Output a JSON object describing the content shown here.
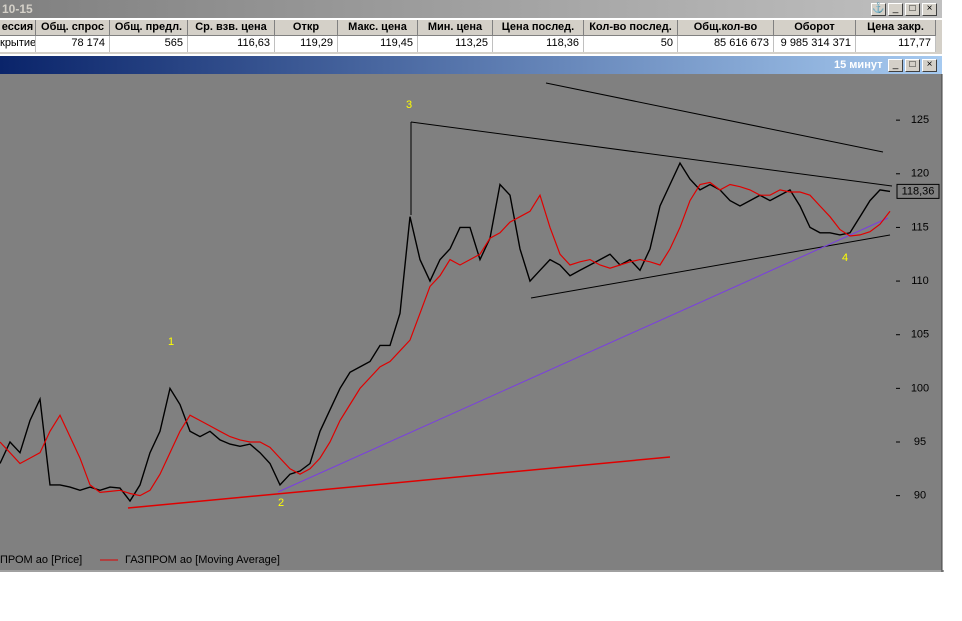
{
  "window": {
    "title": "10-15",
    "columns": [
      "ессия",
      "Общ. спрос",
      "Общ. предл.",
      "Ср. взв. цена",
      "Откр",
      "Макс. цена",
      "Мин. цена",
      "Цена послед.",
      "Кол-во послед.",
      "Общ.кол-во",
      "Оборот",
      "Цена закр."
    ],
    "row": [
      "крытие",
      "78 174",
      "565",
      "116,63",
      "119,29",
      "119,45",
      "113,25",
      "118,36",
      "50",
      "85 616 673",
      "9 985 314 371",
      "117,77"
    ]
  },
  "chart_window": {
    "title": "15 минут"
  },
  "chart_data": {
    "type": "line",
    "ylim": [
      85.4,
      129.3
    ],
    "yticks": [
      90,
      95,
      100,
      105,
      110,
      115,
      120,
      125
    ],
    "last_price": {
      "value": 118.36,
      "label": "118,36"
    },
    "annotations": [
      "1",
      "2",
      "3",
      "4"
    ],
    "series": [
      {
        "name": "ПРОМ ао [Price]",
        "color": "#000000",
        "values": [
          93,
          95,
          94,
          97,
          99,
          91,
          91,
          90.8,
          90.5,
          90.8,
          90.5,
          90.8,
          90.7,
          89.5,
          91,
          94,
          96,
          100,
          98.5,
          96,
          95.5,
          96,
          95.2,
          94.8,
          94.6,
          94.8,
          94,
          93,
          91,
          92,
          92.3,
          93,
          96,
          98,
          100,
          101.5,
          102,
          102.5,
          104,
          104,
          107,
          116,
          112,
          110,
          112,
          113,
          115,
          115,
          112,
          114,
          119,
          118,
          113,
          110,
          111,
          112,
          111.5,
          110.5,
          111,
          111.5,
          112,
          112.5,
          111.5,
          112,
          111,
          113,
          117,
          119,
          121,
          119.5,
          118.5,
          119,
          118.5,
          117.5,
          117,
          117.5,
          118,
          117.5,
          118,
          118.5,
          117,
          115,
          114.5,
          114.5,
          114.3,
          114.5,
          116,
          117.5,
          118.5,
          118.36
        ]
      },
      {
        "name": "ГАЗПРОМ ао [Moving Average]",
        "color": "#e00000",
        "values": [
          95,
          94,
          93,
          93.5,
          94,
          96,
          97.5,
          95.5,
          93.5,
          91,
          90.3,
          90.4,
          90.5,
          90.2,
          90,
          90.5,
          92,
          94,
          96,
          97.5,
          97,
          96.5,
          96,
          95.5,
          95.2,
          95,
          95,
          94.5,
          93.5,
          92.5,
          92,
          92.5,
          93.5,
          95,
          97,
          98.5,
          100,
          101,
          102,
          102.5,
          103.5,
          104.5,
          107,
          109.5,
          110.5,
          112,
          111.5,
          112,
          112.5,
          114,
          114.5,
          115.5,
          116,
          116.5,
          118,
          115,
          112.5,
          111.5,
          111.8,
          112,
          111.5,
          111.2,
          111.5,
          111.8,
          112,
          111.8,
          111.5,
          113,
          115,
          117.5,
          119,
          119.2,
          118.5,
          119,
          118.8,
          118.5,
          118,
          118,
          118.5,
          118.3,
          118.3,
          118,
          117,
          116,
          114.8,
          114.2,
          114.3,
          114.6,
          115.3,
          116.5
        ]
      }
    ]
  }
}
